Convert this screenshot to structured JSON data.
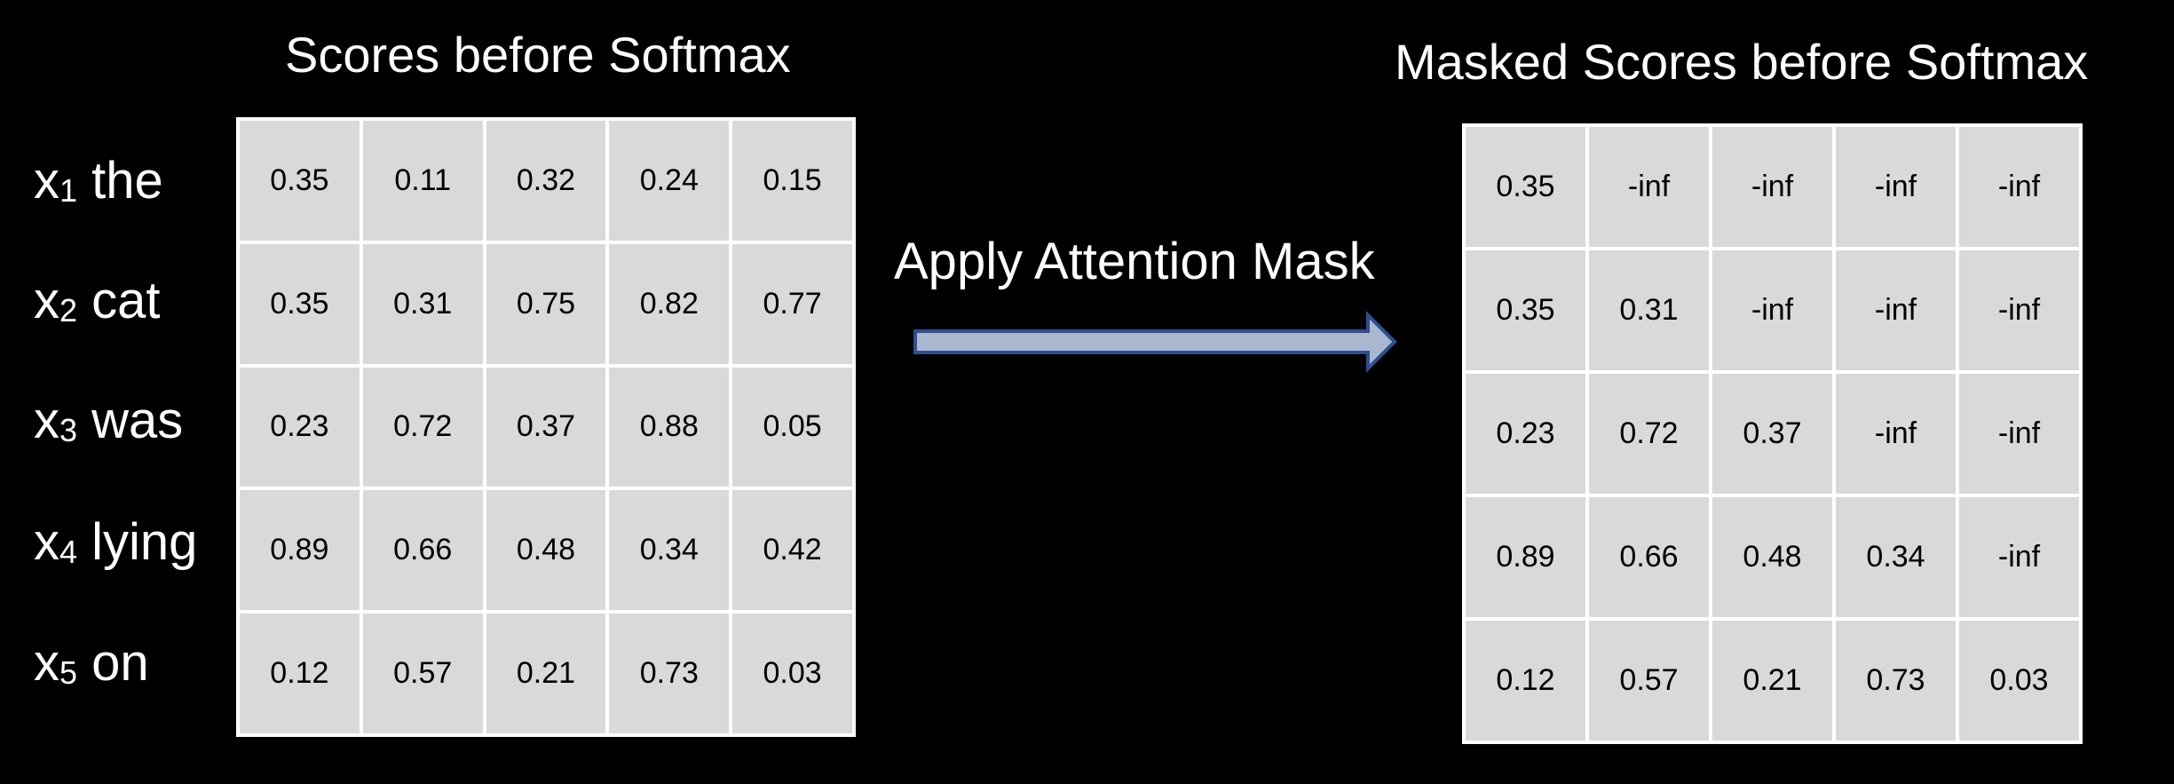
{
  "left_panel": {
    "title": "Scores before Softmax",
    "tokens": [
      {
        "var": "x",
        "index": "1",
        "word": "the"
      },
      {
        "var": "x",
        "index": "2",
        "word": "cat"
      },
      {
        "var": "x",
        "index": "3",
        "word": "was"
      },
      {
        "var": "x",
        "index": "4",
        "word": "lying"
      },
      {
        "var": "x",
        "index": "5",
        "word": "on"
      }
    ],
    "matrix": [
      [
        "0.35",
        "0.11",
        "0.32",
        "0.24",
        "0.15"
      ],
      [
        "0.35",
        "0.31",
        "0.75",
        "0.82",
        "0.77"
      ],
      [
        "0.23",
        "0.72",
        "0.37",
        "0.88",
        "0.05"
      ],
      [
        "0.89",
        "0.66",
        "0.48",
        "0.34",
        "0.42"
      ],
      [
        "0.12",
        "0.57",
        "0.21",
        "0.73",
        "0.03"
      ]
    ]
  },
  "arrow": {
    "label": "Apply Attention Mask",
    "fill_color": "#a9b7cf",
    "stroke_color": "#2f4f8f"
  },
  "right_panel": {
    "title": "Masked Scores before Softmax",
    "matrix": [
      [
        "0.35",
        "-inf",
        "-inf",
        "-inf",
        "-inf"
      ],
      [
        "0.35",
        "0.31",
        "-inf",
        "-inf",
        "-inf"
      ],
      [
        "0.23",
        "0.72",
        "0.37",
        "-inf",
        "-inf"
      ],
      [
        "0.89",
        "0.66",
        "0.48",
        "0.34",
        "-inf"
      ],
      [
        "0.12",
        "0.57",
        "0.21",
        "0.73",
        "0.03"
      ]
    ]
  },
  "colors": {
    "background": "#000000",
    "cell_fill": "#d9d9d9",
    "grid_lines": "#ffffff",
    "text_light": "#ffffff",
    "text_dark": "#000000"
  }
}
